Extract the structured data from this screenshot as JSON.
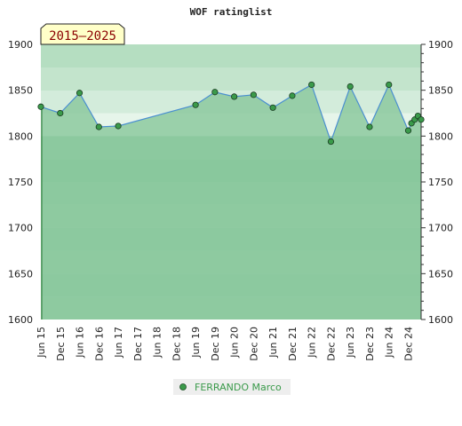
{
  "chart_data": {
    "type": "area",
    "title": "WOF ratinglist",
    "period_label": "2015—2025",
    "ylim": [
      1600,
      1900
    ],
    "y_ticks": [
      "1600",
      "1650",
      "1700",
      "1750",
      "1800",
      "1850",
      "1900"
    ],
    "x_ticks": [
      "Jun 15",
      "Dec 15",
      "Jun 16",
      "Dec 16",
      "Jun 17",
      "Dec 17",
      "Jun 18",
      "Dec 18",
      "Jun 19",
      "Dec 19",
      "Jun 20",
      "Dec 20",
      "Jun 21",
      "Dec 21",
      "Jun 22",
      "Dec 22",
      "Jun 23",
      "Dec 23",
      "Jun 24",
      "Dec 24"
    ],
    "legend": "FERRANDO Marco",
    "series": [
      {
        "name": "FERRANDO Marco",
        "color": "#3a9a4a",
        "points": [
          {
            "x": "2015-06",
            "y": 1832
          },
          {
            "x": "2015-12",
            "y": 1825
          },
          {
            "x": "2016-06",
            "y": 1847
          },
          {
            "x": "2016-12",
            "y": 1810
          },
          {
            "x": "2017-06",
            "y": 1811
          },
          {
            "x": "2019-06",
            "y": 1834
          },
          {
            "x": "2019-12",
            "y": 1848
          },
          {
            "x": "2020-06",
            "y": 1843
          },
          {
            "x": "2020-12",
            "y": 1845
          },
          {
            "x": "2021-06",
            "y": 1831
          },
          {
            "x": "2021-12",
            "y": 1844
          },
          {
            "x": "2022-06",
            "y": 1856
          },
          {
            "x": "2022-12",
            "y": 1794
          },
          {
            "x": "2023-06",
            "y": 1854
          },
          {
            "x": "2023-12",
            "y": 1810
          },
          {
            "x": "2024-06",
            "y": 1856
          },
          {
            "x": "2024-12",
            "y": 1806
          },
          {
            "x": "2025-01",
            "y": 1814
          },
          {
            "x": "2025-02",
            "y": 1818
          },
          {
            "x": "2025-03",
            "y": 1822
          },
          {
            "x": "2025-04",
            "y": 1818
          }
        ]
      }
    ]
  }
}
